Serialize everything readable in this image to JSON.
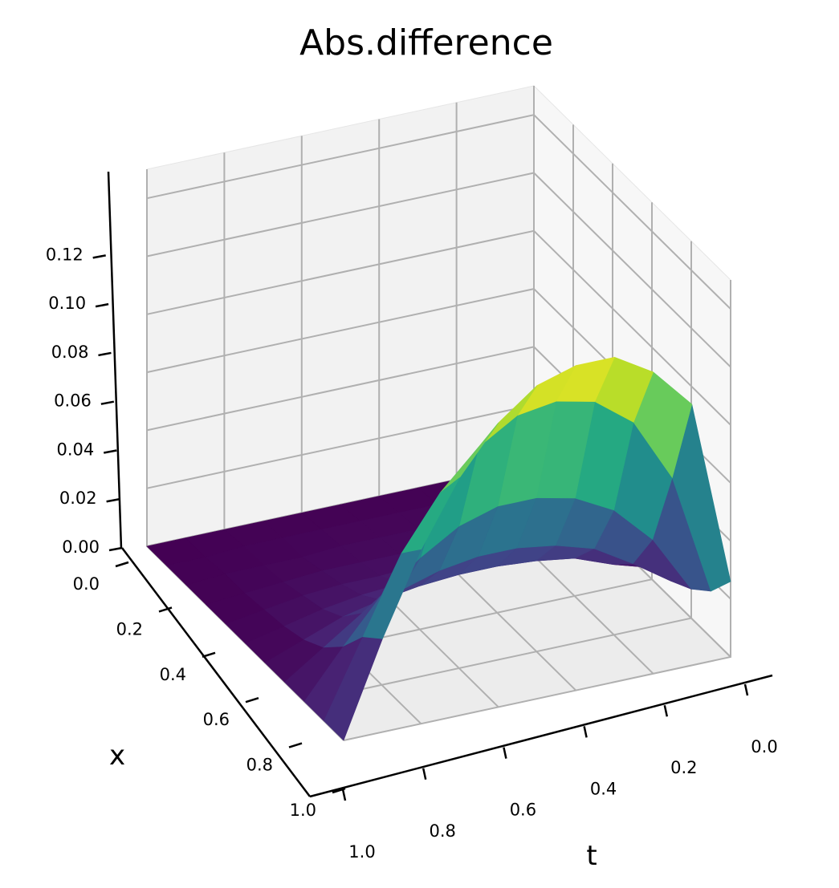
{
  "chart_data": {
    "type": "surface",
    "title": "Abs.difference",
    "xlabel": "x",
    "ylabel": "t",
    "zlabel": "",
    "colormap": "viridis",
    "grid": true,
    "x_range": [
      0,
      1
    ],
    "t_range": [
      0,
      1
    ],
    "z_range": [
      0,
      0.13
    ],
    "x_ticks": [
      "0.0",
      "0.2",
      "0.4",
      "0.6",
      "0.8",
      "1.0"
    ],
    "t_ticks": [
      "0.0",
      "0.2",
      "0.4",
      "0.6",
      "0.8",
      "1.0"
    ],
    "z_ticks": [
      "0.00",
      "0.02",
      "0.04",
      "0.06",
      "0.08",
      "0.10",
      "0.12"
    ],
    "x": [
      0.0,
      0.1,
      0.2,
      0.3,
      0.4,
      0.5,
      0.6,
      0.7,
      0.8,
      0.9,
      1.0
    ],
    "t": [
      0.0,
      0.1,
      0.2,
      0.3,
      0.4,
      0.5,
      0.6,
      0.7,
      0.8,
      0.9,
      1.0
    ],
    "z": [
      [
        0.0,
        0.0,
        0.0,
        0.001,
        0.001,
        0.002,
        0.004,
        0.006,
        0.01,
        0.016,
        0.026
      ],
      [
        0.0,
        0.001,
        0.001,
        0.002,
        0.003,
        0.005,
        0.008,
        0.015,
        0.03,
        0.058,
        0.09
      ],
      [
        0.0,
        0.001,
        0.002,
        0.003,
        0.005,
        0.008,
        0.013,
        0.023,
        0.043,
        0.08,
        0.104
      ],
      [
        0.0,
        0.001,
        0.002,
        0.003,
        0.005,
        0.009,
        0.015,
        0.027,
        0.05,
        0.09,
        0.112
      ],
      [
        0.0,
        0.001,
        0.002,
        0.003,
        0.006,
        0.01,
        0.016,
        0.029,
        0.053,
        0.093,
        0.112
      ],
      [
        0.0,
        0.001,
        0.002,
        0.003,
        0.006,
        0.01,
        0.016,
        0.029,
        0.053,
        0.091,
        0.108
      ],
      [
        0.0,
        0.001,
        0.002,
        0.003,
        0.005,
        0.009,
        0.015,
        0.027,
        0.049,
        0.083,
        0.098
      ],
      [
        0.0,
        0.001,
        0.001,
        0.003,
        0.005,
        0.008,
        0.013,
        0.023,
        0.041,
        0.07,
        0.082
      ],
      [
        0.0,
        0.001,
        0.001,
        0.002,
        0.004,
        0.006,
        0.01,
        0.018,
        0.031,
        0.052,
        0.06
      ],
      [
        0.0,
        0.0,
        0.001,
        0.001,
        0.002,
        0.003,
        0.005,
        0.009,
        0.016,
        0.026,
        0.032
      ],
      [
        0.0,
        0.0,
        0.0,
        0.0,
        0.0,
        0.0,
        0.0,
        0.0,
        0.0,
        0.0,
        0.0
      ]
    ]
  }
}
